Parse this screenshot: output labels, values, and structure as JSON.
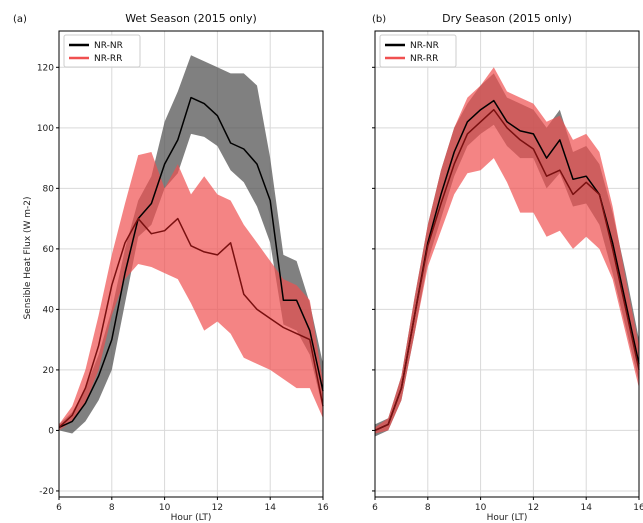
{
  "figure": {
    "ylabel": "Sensible Heat Flux (W m-2)"
  },
  "colors": {
    "nr_line": "#000000",
    "nr_band": "#555555",
    "rr_line": "#7a1010",
    "rr_band": "#f05050",
    "grid": "#d9d9d9"
  },
  "chart_data": [
    {
      "type": "line",
      "panel_tag": "(a)",
      "title": "Wet Season (2015 only)",
      "xlabel": "Hour (LT)",
      "ylabel": "Sensible Heat Flux (W m-2)",
      "xlim": [
        6,
        16
      ],
      "ylim": [
        -22,
        132
      ],
      "xticks": [
        6,
        8,
        10,
        12,
        14,
        16
      ],
      "yticks": [
        -20,
        0,
        20,
        40,
        60,
        80,
        100,
        120
      ],
      "grid": true,
      "legend_position": "top-left",
      "x": [
        6,
        6.5,
        7,
        7.5,
        8,
        8.5,
        9,
        9.5,
        10,
        10.5,
        11,
        11.5,
        12,
        12.5,
        13,
        13.5,
        14,
        14.5,
        15,
        15.5,
        16
      ],
      "series": [
        {
          "name": "NR-NR",
          "mean": [
            1,
            3,
            9,
            18,
            30,
            52,
            70,
            75,
            88,
            96,
            110,
            108,
            104,
            95,
            93,
            88,
            76,
            43,
            43,
            33,
            13
          ],
          "low": [
            0,
            -1,
            3,
            10,
            20,
            42,
            64,
            68,
            80,
            85,
            98,
            97,
            94,
            86,
            82,
            74,
            62,
            35,
            33,
            25,
            7
          ],
          "high": [
            2,
            6,
            14,
            25,
            40,
            60,
            76,
            84,
            102,
            112,
            124,
            122,
            120,
            118,
            118,
            114,
            90,
            58,
            56,
            42,
            22
          ]
        },
        {
          "name": "NR-RR",
          "mean": [
            1,
            5,
            14,
            28,
            48,
            62,
            70,
            65,
            66,
            70,
            61,
            59,
            58,
            62,
            45,
            40,
            37,
            34,
            32,
            30,
            8
          ],
          "low": [
            0,
            3,
            9,
            20,
            38,
            50,
            55,
            54,
            52,
            50,
            42,
            33,
            36,
            32,
            24,
            22,
            20,
            17,
            14,
            14,
            4
          ],
          "high": [
            2,
            8,
            20,
            38,
            58,
            75,
            91,
            92,
            80,
            88,
            78,
            84,
            78,
            76,
            68,
            62,
            56,
            50,
            48,
            43,
            16
          ]
        }
      ]
    },
    {
      "type": "line",
      "panel_tag": "(b)",
      "title": "Dry Season (2015 only)",
      "xlabel": "Hour (LT)",
      "xlim": [
        6,
        16
      ],
      "ylim": [
        -22,
        132
      ],
      "xticks": [
        6,
        8,
        10,
        12,
        14,
        16
      ],
      "yticks": [
        -20,
        0,
        20,
        40,
        60,
        80,
        100,
        120
      ],
      "grid": true,
      "legend_position": "top-left",
      "x": [
        6,
        6.5,
        7,
        7.5,
        8,
        8.5,
        9,
        9.5,
        10,
        10.5,
        11,
        11.5,
        12,
        12.5,
        13,
        13.5,
        14,
        14.5,
        15,
        15.5,
        16
      ],
      "series": [
        {
          "name": "NR-NR",
          "mean": [
            0,
            2,
            14,
            38,
            62,
            78,
            92,
            102,
            106,
            109,
            102,
            99,
            98,
            90,
            96,
            83,
            84,
            78,
            62,
            42,
            22
          ],
          "low": [
            -2,
            0,
            10,
            32,
            56,
            70,
            84,
            94,
            98,
            101,
            94,
            90,
            90,
            80,
            85,
            74,
            75,
            68,
            52,
            34,
            16
          ],
          "high": [
            2,
            4,
            18,
            44,
            68,
            86,
            100,
            108,
            114,
            118,
            110,
            108,
            106,
            100,
            106,
            92,
            94,
            88,
            72,
            52,
            30
          ]
        },
        {
          "name": "NR-RR",
          "mean": [
            0,
            2,
            14,
            38,
            61,
            75,
            88,
            98,
            102,
            106,
            100,
            96,
            93,
            84,
            86,
            78,
            82,
            78,
            60,
            40,
            20
          ],
          "low": [
            -1,
            0,
            10,
            32,
            54,
            66,
            78,
            85,
            86,
            90,
            82,
            72,
            72,
            64,
            66,
            60,
            64,
            60,
            50,
            32,
            14
          ],
          "high": [
            1,
            4,
            18,
            44,
            68,
            86,
            100,
            110,
            114,
            120,
            112,
            110,
            108,
            102,
            104,
            96,
            98,
            92,
            74,
            50,
            28
          ]
        }
      ]
    }
  ]
}
